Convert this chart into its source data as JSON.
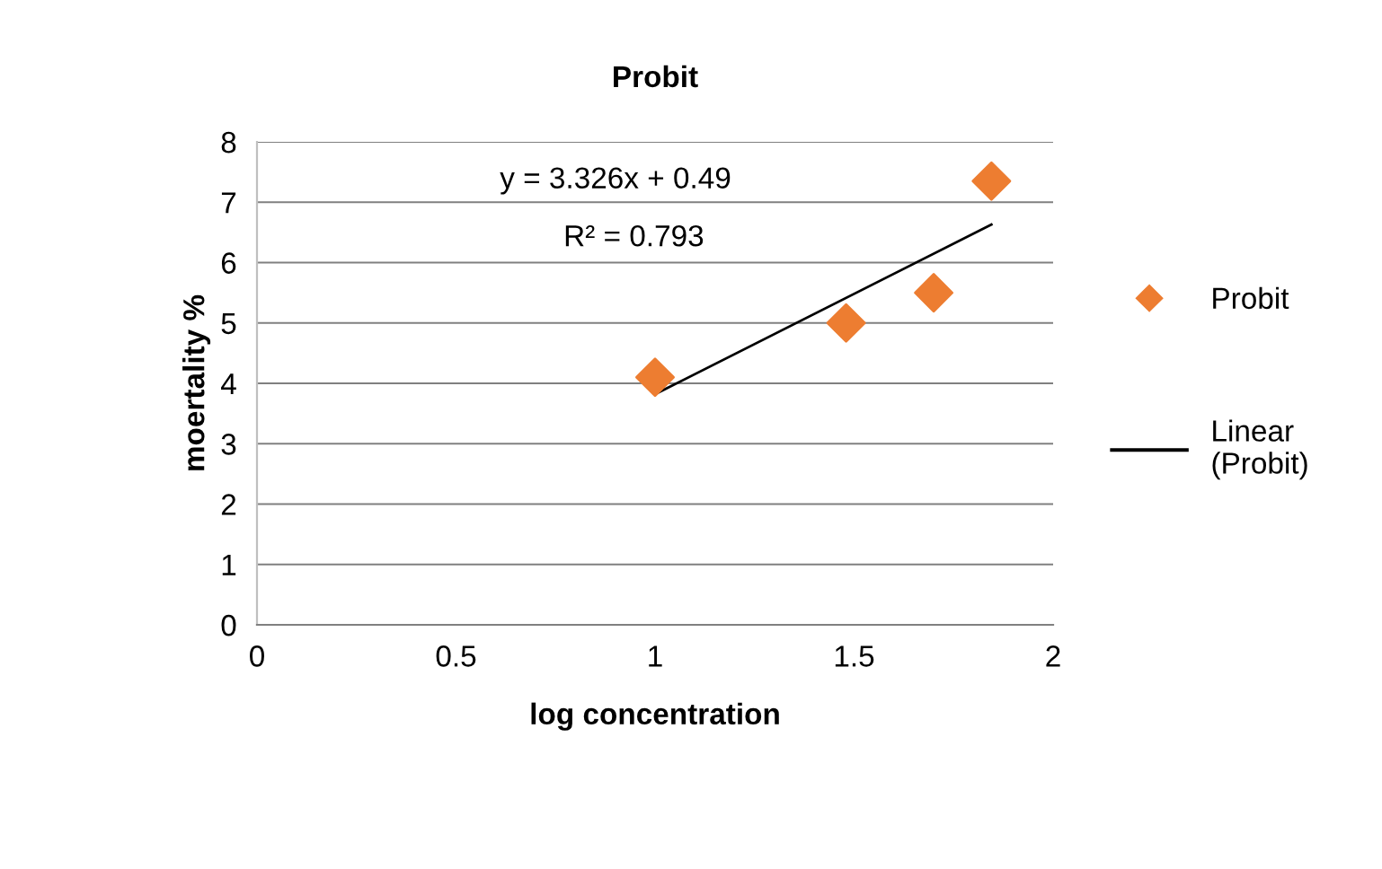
{
  "chart_data": {
    "type": "scatter",
    "title": "Probit",
    "xlabel": "log concentration",
    "ylabel": "moertality %",
    "series": [
      {
        "name": "Probit",
        "color": "#ed7d31",
        "marker": "diamond",
        "x": [
          1.0,
          1.48,
          1.7,
          1.845
        ],
        "values": [
          4.1,
          5.0,
          5.5,
          7.35
        ]
      },
      {
        "name": "Linear\n(Probit)",
        "type": "line",
        "color": "#000000",
        "marker": "none",
        "line_style": "solid",
        "x": [
          1.0,
          1.845
        ],
        "values": [
          3.82,
          6.63
        ]
      }
    ],
    "annotations": [
      "y = 3.326x + 0.49",
      "R² = 0.793"
    ],
    "xlim": [
      0,
      2
    ],
    "xticks": [
      0,
      0.5,
      1,
      1.5,
      2
    ],
    "ylim": [
      0,
      8
    ],
    "yticks": [
      0,
      1,
      2,
      3,
      4,
      5,
      6,
      7,
      8
    ],
    "grid": "y",
    "legend": "right"
  }
}
